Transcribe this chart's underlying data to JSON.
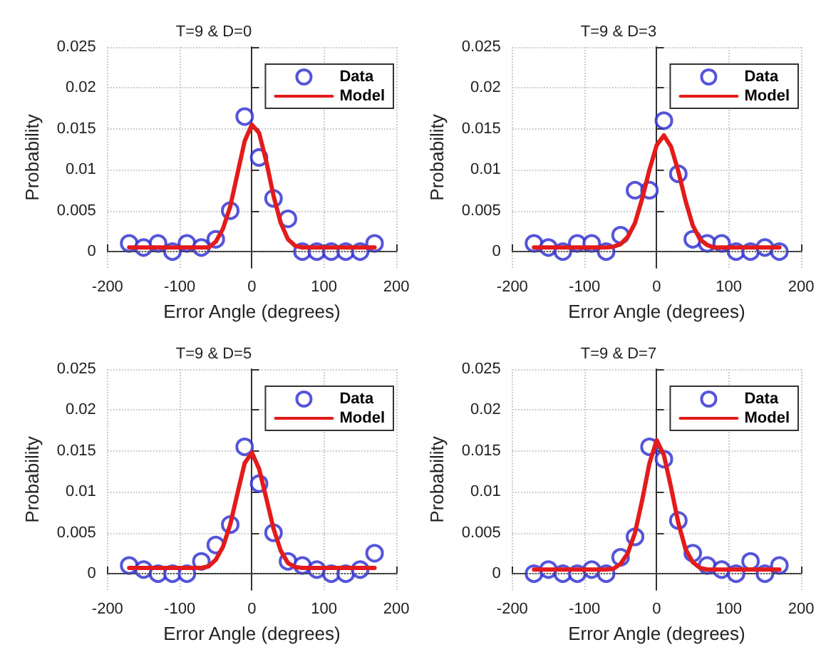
{
  "chart_data": [
    {
      "type": "scatter",
      "title": "T=9 & D=0",
      "xlabel": "Error Angle (degrees)",
      "ylabel": "Probability",
      "xlim": [
        -200,
        200
      ],
      "xticks": [
        -200,
        -100,
        0,
        100,
        200
      ],
      "ylim": [
        -0.002,
        0.025
      ],
      "yticks": [
        0,
        0.005,
        0.01,
        0.015,
        0.02,
        0.025
      ],
      "grid": true,
      "legend": "top right",
      "ref_lines": [
        {
          "axis": "y",
          "value": 0,
          "color": "#555555",
          "line_style": "dotted"
        }
      ],
      "series": [
        {
          "name": "Data",
          "marker": "circle",
          "color": "#2b2bcf",
          "x": [
            -170,
            -150,
            -130,
            -110,
            -90,
            -70,
            -50,
            -30,
            -10,
            10,
            30,
            50,
            70,
            90,
            110,
            130,
            150,
            170
          ],
          "values": [
            0.001,
            0.0005,
            0.001,
            0,
            0.001,
            0.0005,
            0.0015,
            0.005,
            0.0165,
            0.0115,
            0.0065,
            0.004,
            0,
            0,
            0,
            0,
            0,
            0.001
          ]
        },
        {
          "name": "Model",
          "type": "line",
          "marker": "none",
          "line_style": "solid",
          "color": "#e31b1b",
          "x": [
            -170,
            -160,
            -150,
            -140,
            -130,
            -120,
            -110,
            -100,
            -90,
            -80,
            -70,
            -60,
            -50,
            -40,
            -30,
            -20,
            -10,
            0,
            10,
            20,
            30,
            40,
            50,
            60,
            70,
            80,
            90,
            100,
            110,
            120,
            130,
            140,
            150,
            160,
            170
          ],
          "values": [
            0.0005,
            0.0005,
            0.0005,
            0.0005,
            0.0005,
            0.0005,
            0.0005,
            0.0005,
            0.0005,
            0.0005,
            0.0005,
            0.0005,
            0.0012,
            0.0028,
            0.0055,
            0.0095,
            0.0135,
            0.0155,
            0.0145,
            0.011,
            0.0068,
            0.0035,
            0.0015,
            0.0007,
            0.0005,
            0.0005,
            0.0005,
            0.0005,
            0.0005,
            0.0005,
            0.0005,
            0.0005,
            0.0005,
            0.0005,
            0.0005
          ]
        }
      ]
    },
    {
      "type": "scatter",
      "title": "T=9 & D=3",
      "xlabel": "Error Angle (degrees)",
      "ylabel": "Probability",
      "xlim": [
        -200,
        200
      ],
      "xticks": [
        -200,
        -100,
        0,
        100,
        200
      ],
      "ylim": [
        -0.002,
        0.025
      ],
      "yticks": [
        0,
        0.005,
        0.01,
        0.015,
        0.02,
        0.025
      ],
      "grid": true,
      "legend": "top right",
      "ref_lines": [
        {
          "axis": "y",
          "value": 0,
          "color": "#555555",
          "line_style": "dotted"
        }
      ],
      "series": [
        {
          "name": "Data",
          "marker": "circle",
          "color": "#2b2bcf",
          "x": [
            -170,
            -150,
            -130,
            -110,
            -90,
            -70,
            -50,
            -30,
            -10,
            10,
            30,
            50,
            70,
            90,
            110,
            130,
            150,
            170
          ],
          "values": [
            0.001,
            0.0005,
            0,
            0.001,
            0.001,
            0,
            0.002,
            0.0075,
            0.0075,
            0.016,
            0.0095,
            0.0015,
            0.001,
            0.001,
            0,
            0,
            0.0005,
            0
          ]
        },
        {
          "name": "Model",
          "type": "line",
          "marker": "none",
          "line_style": "solid",
          "color": "#e31b1b",
          "x": [
            -170,
            -160,
            -150,
            -140,
            -130,
            -120,
            -110,
            -100,
            -90,
            -80,
            -70,
            -60,
            -50,
            -40,
            -30,
            -20,
            -10,
            0,
            10,
            20,
            30,
            40,
            50,
            60,
            70,
            80,
            90,
            100,
            110,
            120,
            130,
            140,
            150,
            160,
            170
          ],
          "values": [
            0.0005,
            0.0005,
            0.0005,
            0.0005,
            0.0005,
            0.0005,
            0.0005,
            0.0005,
            0.0005,
            0.0005,
            0.0005,
            0.0006,
            0.0009,
            0.0018,
            0.0035,
            0.0065,
            0.01,
            0.013,
            0.0142,
            0.0128,
            0.0098,
            0.0062,
            0.0032,
            0.0015,
            0.0008,
            0.0005,
            0.0005,
            0.0005,
            0.0005,
            0.0005,
            0.0005,
            0.0005,
            0.0005,
            0.0005,
            0.0005
          ]
        }
      ]
    },
    {
      "type": "scatter",
      "title": "T=9 & D=5",
      "xlabel": "Error Angle (degrees)",
      "ylabel": "Probability",
      "xlim": [
        -200,
        200
      ],
      "xticks": [
        -200,
        -100,
        0,
        100,
        200
      ],
      "ylim": [
        -0.002,
        0.025
      ],
      "yticks": [
        0,
        0.005,
        0.01,
        0.015,
        0.02,
        0.025
      ],
      "grid": true,
      "legend": "top right",
      "ref_lines": [
        {
          "axis": "y",
          "value": 0,
          "color": "#555555",
          "line_style": "dotted"
        }
      ],
      "series": [
        {
          "name": "Data",
          "marker": "circle",
          "color": "#2b2bcf",
          "x": [
            -170,
            -150,
            -130,
            -110,
            -90,
            -70,
            -50,
            -30,
            -10,
            10,
            30,
            50,
            70,
            90,
            110,
            130,
            150,
            170
          ],
          "values": [
            0.001,
            0.0005,
            0,
            0,
            0,
            0.0015,
            0.0035,
            0.006,
            0.0155,
            0.011,
            0.005,
            0.0015,
            0.001,
            0.0005,
            0,
            0,
            0.0005,
            0.0025
          ]
        },
        {
          "name": "Model",
          "type": "line",
          "marker": "none",
          "line_style": "solid",
          "color": "#e31b1b",
          "x": [
            -170,
            -160,
            -150,
            -140,
            -130,
            -120,
            -110,
            -100,
            -90,
            -80,
            -70,
            -60,
            -50,
            -40,
            -30,
            -20,
            -10,
            0,
            10,
            20,
            30,
            40,
            50,
            60,
            70,
            80,
            90,
            100,
            110,
            120,
            130,
            140,
            150,
            160,
            170
          ],
          "values": [
            0.0007,
            0.0007,
            0.0007,
            0.0007,
            0.0007,
            0.0007,
            0.0007,
            0.0007,
            0.0007,
            0.0007,
            0.0007,
            0.0009,
            0.0017,
            0.0033,
            0.006,
            0.0098,
            0.0135,
            0.0148,
            0.0128,
            0.0092,
            0.0055,
            0.0028,
            0.0013,
            0.0008,
            0.0007,
            0.0007,
            0.0007,
            0.0007,
            0.0007,
            0.0007,
            0.0007,
            0.0007,
            0.0007,
            0.0007,
            0.0007
          ]
        }
      ]
    },
    {
      "type": "scatter",
      "title": "T=9 & D=7",
      "xlabel": "Error Angle (degrees)",
      "ylabel": "Probability",
      "xlim": [
        -200,
        200
      ],
      "xticks": [
        -200,
        -100,
        0,
        100,
        200
      ],
      "ylim": [
        -0.002,
        0.025
      ],
      "yticks": [
        0,
        0.005,
        0.01,
        0.015,
        0.02,
        0.025
      ],
      "grid": true,
      "legend": "top right",
      "ref_lines": [
        {
          "axis": "y",
          "value": 0,
          "color": "#555555",
          "line_style": "dotted"
        }
      ],
      "series": [
        {
          "name": "Data",
          "marker": "circle",
          "color": "#2b2bcf",
          "x": [
            -170,
            -150,
            -130,
            -110,
            -90,
            -70,
            -50,
            -30,
            -10,
            10,
            30,
            50,
            70,
            90,
            110,
            130,
            150,
            170
          ],
          "values": [
            0,
            0.0005,
            0,
            0,
            0.0005,
            0,
            0.002,
            0.0045,
            0.0155,
            0.014,
            0.0065,
            0.0025,
            0.001,
            0.0005,
            0,
            0.0015,
            0,
            0.001
          ]
        },
        {
          "name": "Model",
          "type": "line",
          "marker": "none",
          "line_style": "solid",
          "color": "#e31b1b",
          "x": [
            -170,
            -160,
            -150,
            -140,
            -130,
            -120,
            -110,
            -100,
            -90,
            -80,
            -70,
            -60,
            -50,
            -40,
            -30,
            -20,
            -10,
            0,
            10,
            20,
            30,
            40,
            50,
            60,
            70,
            80,
            90,
            100,
            110,
            120,
            130,
            140,
            150,
            160,
            170
          ],
          "values": [
            0.0005,
            0.0005,
            0.0005,
            0.0005,
            0.0005,
            0.0005,
            0.0005,
            0.0005,
            0.0005,
            0.0005,
            0.0005,
            0.0006,
            0.0012,
            0.0025,
            0.005,
            0.009,
            0.0135,
            0.0163,
            0.0145,
            0.0105,
            0.0062,
            0.003,
            0.0014,
            0.0007,
            0.0005,
            0.0005,
            0.0005,
            0.0005,
            0.0005,
            0.0005,
            0.0005,
            0.0005,
            0.0005,
            0.0005,
            0.0005
          ]
        }
      ]
    }
  ]
}
